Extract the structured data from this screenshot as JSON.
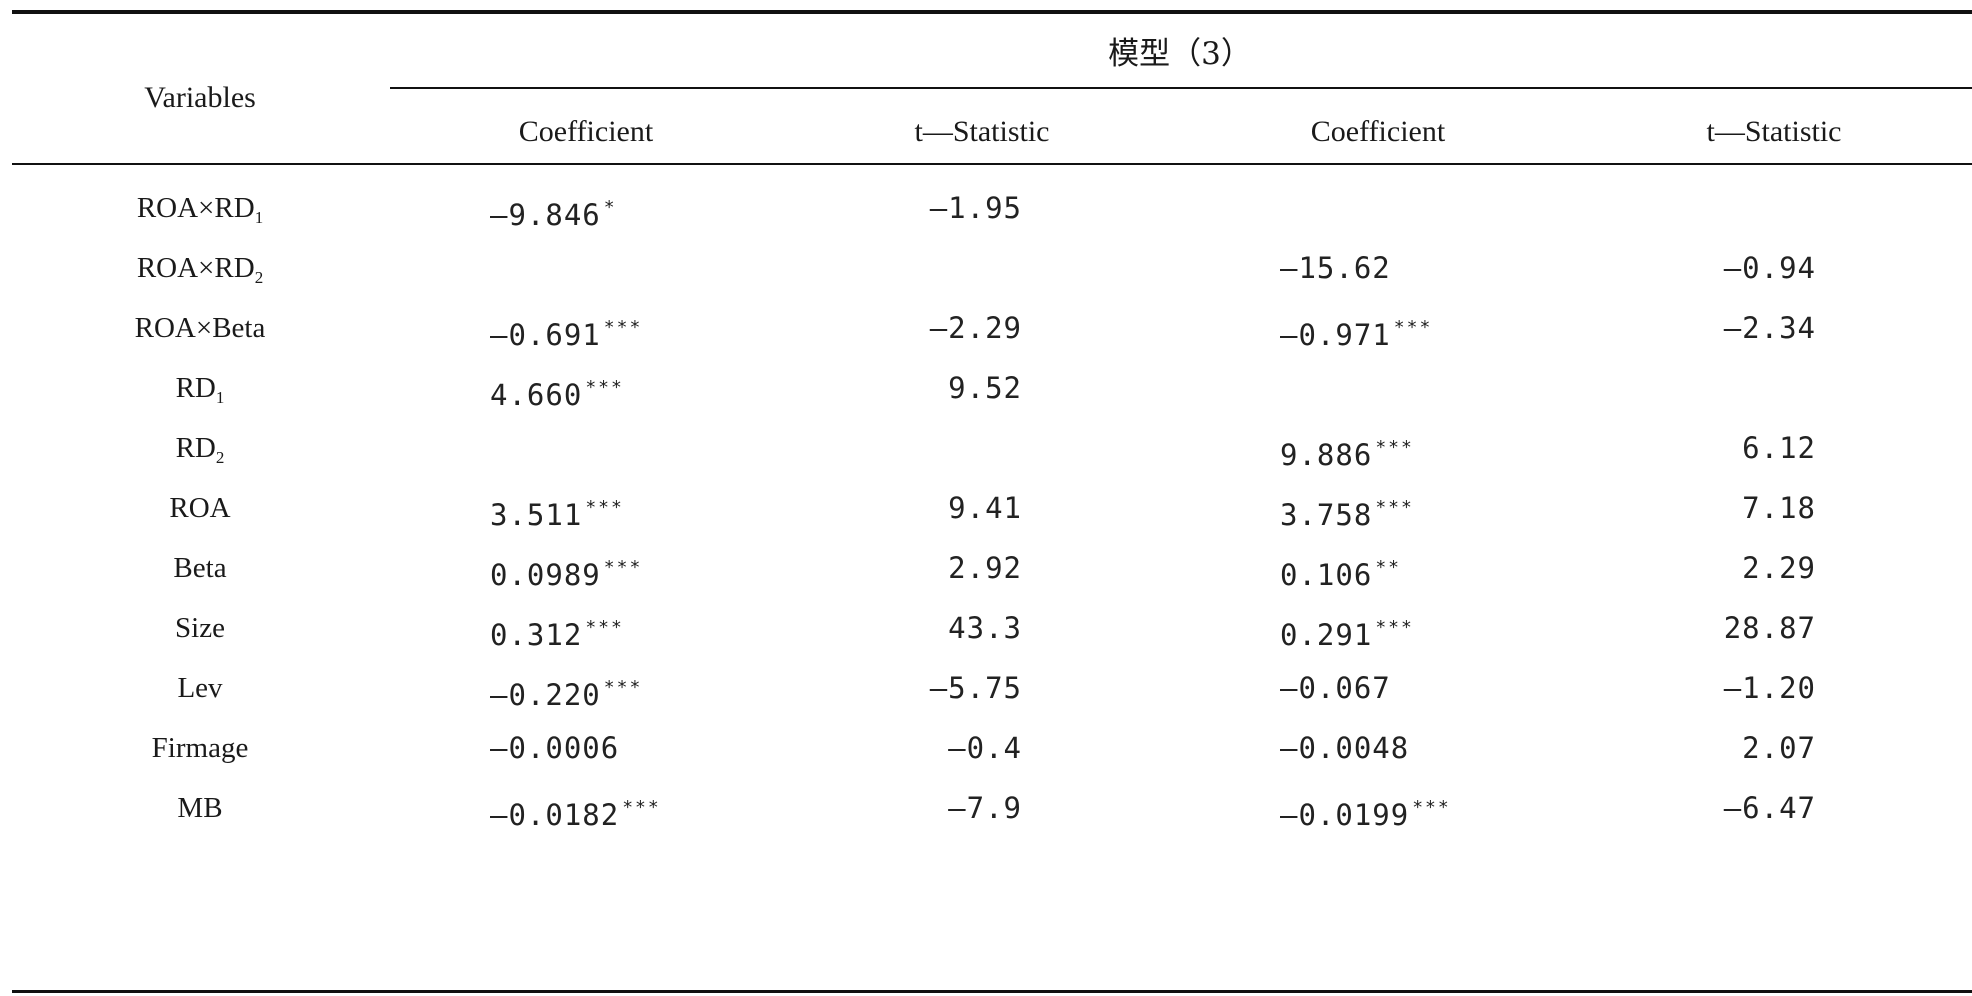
{
  "table": {
    "header": {
      "variables": "Variables",
      "group": "模型（3）",
      "columns": [
        "Coefficient",
        "t—Statistic",
        "Coefficient",
        "t—Statistic"
      ]
    },
    "rows": [
      {
        "var": "ROA×RD",
        "sub": "1",
        "c1": "—9.846",
        "s1": "*",
        "c2": "—1.95",
        "c3": "",
        "s3": "",
        "c4": ""
      },
      {
        "var": "ROA×RD",
        "sub": "2",
        "c1": "",
        "s1": "",
        "c2": "",
        "c3": "—15.62",
        "s3": "",
        "c4": "—0.94"
      },
      {
        "var": "ROA×Beta",
        "sub": "",
        "c1": "—0.691",
        "s1": "***",
        "c2": "—2.29",
        "c3": "—0.971",
        "s3": "***",
        "c4": "—2.34"
      },
      {
        "var": "RD",
        "sub": "1",
        "c1": "4.660",
        "s1": "***",
        "c2": "9.52",
        "c3": "",
        "s3": "",
        "c4": ""
      },
      {
        "var": "RD",
        "sub": "2",
        "c1": "",
        "s1": "",
        "c2": "",
        "c3": "9.886",
        "s3": "***",
        "c4": "6.12"
      },
      {
        "var": "ROA",
        "sub": "",
        "c1": "3.511",
        "s1": "***",
        "c2": "9.41",
        "c3": "3.758",
        "s3": "***",
        "c4": "7.18"
      },
      {
        "var": "Beta",
        "sub": "",
        "c1": "0.0989",
        "s1": "***",
        "c2": "2.92",
        "c3": "0.106",
        "s3": "**",
        "c4": "2.29"
      },
      {
        "var": "Size",
        "sub": "",
        "c1": "0.312",
        "s1": "***",
        "c2": "43.3",
        "c3": "0.291",
        "s3": "***",
        "c4": "28.87"
      },
      {
        "var": "Lev",
        "sub": "",
        "c1": "—0.220",
        "s1": "***",
        "c2": "—5.75",
        "c3": "—0.067",
        "s3": "",
        "c4": "—1.20"
      },
      {
        "var": "Firmage",
        "sub": "",
        "c1": "—0.0006",
        "s1": "",
        "c2": "—0.4",
        "c3": "—0.0048",
        "s3": "",
        "c4": "2.07"
      },
      {
        "var": "MB",
        "sub": "",
        "c1": "—0.0182",
        "s1": "***",
        "c2": "—7.9",
        "c3": "—0.0199",
        "s3": "***",
        "c4": "—6.47"
      }
    ]
  }
}
